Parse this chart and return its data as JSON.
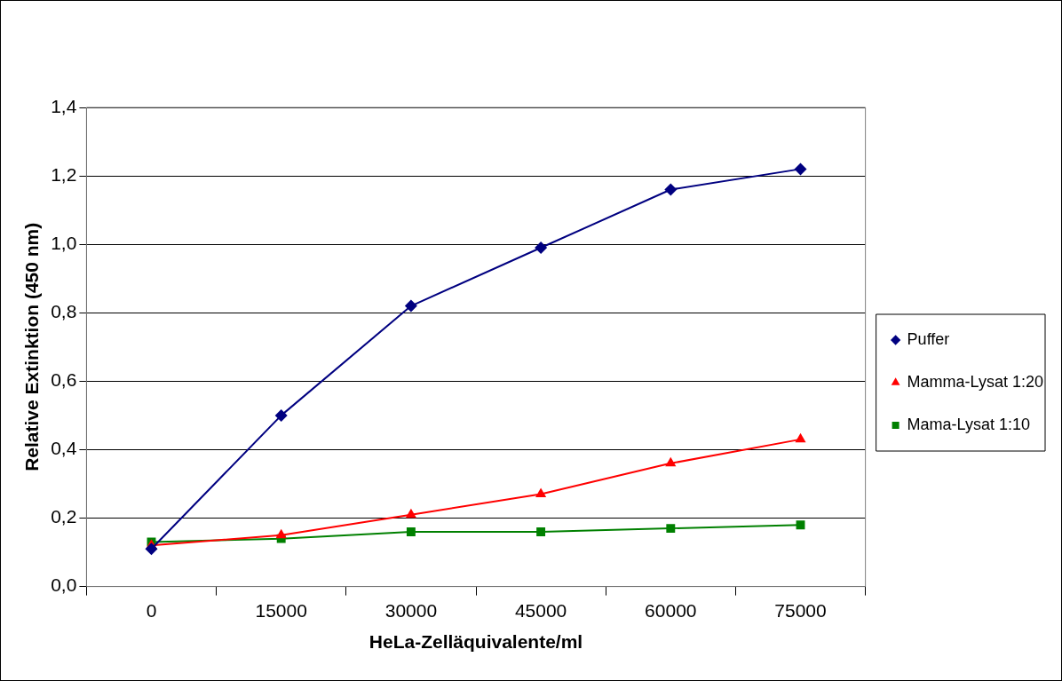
{
  "chart_data": {
    "type": "line",
    "xlabel": "HeLa-Zelläquivalente/ml",
    "ylabel": "Relative Extinktion (450 nm)",
    "categories": [
      "0",
      "15000",
      "30000",
      "45000",
      "60000",
      "75000"
    ],
    "series": [
      {
        "name": "Puffer",
        "color": "#000080",
        "marker": "diamond",
        "values": [
          0.11,
          0.5,
          0.82,
          0.99,
          1.16,
          1.22
        ]
      },
      {
        "name": "Mamma-Lysat 1:20",
        "color": "#ff0000",
        "marker": "triangle",
        "values": [
          0.12,
          0.15,
          0.21,
          0.27,
          0.36,
          0.43
        ]
      },
      {
        "name": "Mama-Lysat 1:10",
        "color": "#008000",
        "marker": "square",
        "values": [
          0.13,
          0.14,
          0.16,
          0.16,
          0.17,
          0.18
        ]
      }
    ],
    "ylim": [
      0,
      1.4
    ],
    "yticks": [
      {
        "value": 0,
        "label": "0,0"
      },
      {
        "value": 0.2,
        "label": "0,2"
      },
      {
        "value": 0.4,
        "label": "0,4"
      },
      {
        "value": 0.6,
        "label": "0,6"
      },
      {
        "value": 0.8,
        "label": "0,8"
      },
      {
        "value": 1,
        "label": "1,0"
      },
      {
        "value": 1.2,
        "label": "1,2"
      },
      {
        "value": 1.4,
        "label": "1,4"
      }
    ],
    "grid": "y",
    "legend": "right"
  }
}
